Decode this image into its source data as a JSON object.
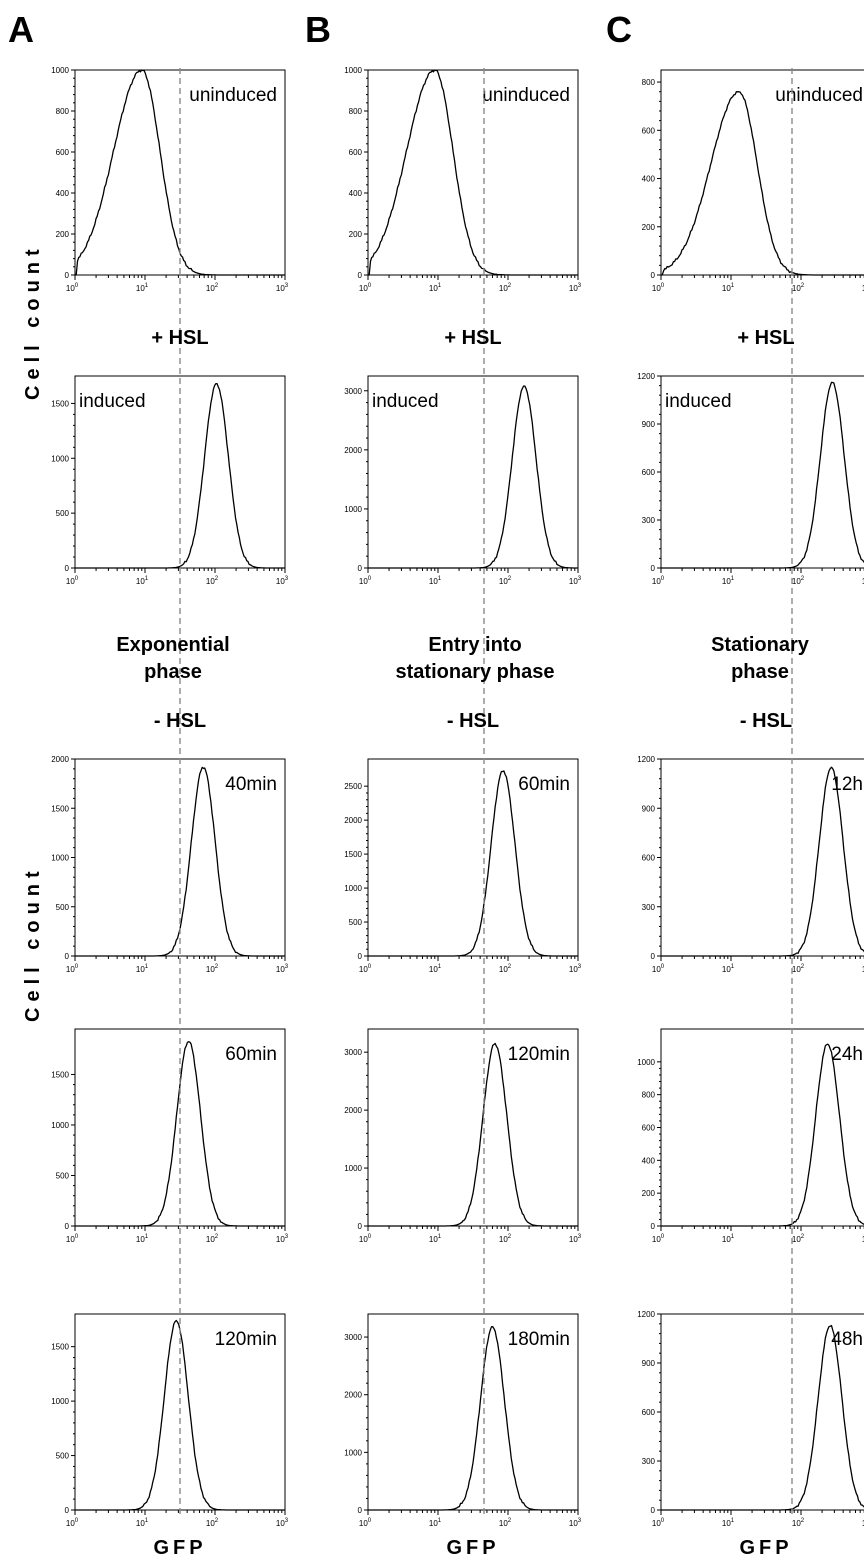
{
  "labels": {
    "column_letters": [
      "A",
      "B",
      "C"
    ],
    "ylabel": "Cell count",
    "xlabel": "GFP",
    "plus_hsl": "+ HSL",
    "minus_hsl": "- HSL",
    "phases": [
      [
        "Exponential",
        "phase"
      ],
      [
        "Entry into",
        "stationary phase"
      ],
      [
        "Stationary",
        "phase"
      ]
    ]
  },
  "colors": {
    "curve": "#000000",
    "reference_line": "#8a8a8a"
  },
  "chart_data": [
    {
      "type": "line",
      "column": "A",
      "row": 1,
      "label": "uninduced",
      "x_scale": "log",
      "xlim": [
        1,
        1000
      ],
      "ylim": [
        0,
        1000
      ],
      "yticks": [
        0,
        200,
        400,
        600,
        800,
        1000
      ],
      "peak": {
        "x": 9,
        "y": 1000
      }
    },
    {
      "type": "line",
      "column": "A",
      "row": 2,
      "label": "induced",
      "x_scale": "log",
      "xlim": [
        1,
        1000
      ],
      "ylim": [
        0,
        1750
      ],
      "yticks": [
        0,
        500,
        1000,
        1500
      ],
      "peak": {
        "x": 105,
        "y": 1680
      }
    },
    {
      "type": "line",
      "column": "A",
      "row": 3,
      "label": "40min",
      "x_scale": "log",
      "xlim": [
        1,
        1000
      ],
      "ylim": [
        0,
        2000
      ],
      "yticks": [
        0,
        500,
        1000,
        1500,
        2000
      ],
      "peak": {
        "x": 68,
        "y": 1920
      }
    },
    {
      "type": "line",
      "column": "A",
      "row": 4,
      "label": "60min",
      "x_scale": "log",
      "xlim": [
        1,
        1000
      ],
      "ylim": [
        0,
        1950
      ],
      "yticks": [
        0,
        500,
        1000,
        1500
      ],
      "peak": {
        "x": 42,
        "y": 1830
      }
    },
    {
      "type": "line",
      "column": "A",
      "row": 5,
      "label": "120min",
      "x_scale": "log",
      "xlim": [
        1,
        1000
      ],
      "ylim": [
        0,
        1800
      ],
      "yticks": [
        0,
        500,
        1000,
        1500
      ],
      "peak": {
        "x": 28,
        "y": 1740
      }
    },
    {
      "type": "line",
      "column": "B",
      "row": 1,
      "label": "uninduced",
      "x_scale": "log",
      "xlim": [
        1,
        1000
      ],
      "ylim": [
        0,
        1000
      ],
      "yticks": [
        0,
        200,
        400,
        600,
        800,
        1000
      ],
      "peak": {
        "x": 9,
        "y": 1000
      }
    },
    {
      "type": "line",
      "column": "B",
      "row": 2,
      "label": "induced",
      "x_scale": "log",
      "xlim": [
        1,
        1000
      ],
      "ylim": [
        0,
        3250
      ],
      "yticks": [
        0,
        1000,
        2000,
        3000
      ],
      "peak": {
        "x": 170,
        "y": 3080
      }
    },
    {
      "type": "line",
      "column": "B",
      "row": 3,
      "label": "60min",
      "x_scale": "log",
      "xlim": [
        1,
        1000
      ],
      "ylim": [
        0,
        2900
      ],
      "yticks": [
        0,
        500,
        1000,
        1500,
        2000,
        2500
      ],
      "peak": {
        "x": 85,
        "y": 2730
      }
    },
    {
      "type": "line",
      "column": "B",
      "row": 4,
      "label": "120min",
      "x_scale": "log",
      "xlim": [
        1,
        1000
      ],
      "ylim": [
        0,
        3400
      ],
      "yticks": [
        0,
        1000,
        2000,
        3000
      ],
      "peak": {
        "x": 65,
        "y": 3150
      }
    },
    {
      "type": "line",
      "column": "B",
      "row": 5,
      "label": "180min",
      "x_scale": "log",
      "xlim": [
        1,
        1000
      ],
      "ylim": [
        0,
        3400
      ],
      "yticks": [
        0,
        1000,
        2000,
        3000
      ],
      "peak": {
        "x": 60,
        "y": 3180
      }
    },
    {
      "type": "line",
      "column": "C",
      "row": 1,
      "label": "uninduced",
      "x_scale": "log",
      "xlim": [
        1,
        1000
      ],
      "ylim": [
        0,
        850
      ],
      "yticks": [
        0,
        200,
        400,
        600,
        800
      ],
      "peak": {
        "x": 13,
        "y": 760
      }
    },
    {
      "type": "line",
      "column": "C",
      "row": 2,
      "label": "induced",
      "x_scale": "log",
      "xlim": [
        1,
        1000
      ],
      "ylim": [
        0,
        1200
      ],
      "yticks": [
        0,
        300,
        600,
        900,
        1200
      ],
      "peak": {
        "x": 280,
        "y": 1160
      }
    },
    {
      "type": "line",
      "column": "C",
      "row": 3,
      "label": "12h",
      "x_scale": "log",
      "xlim": [
        1,
        1000
      ],
      "ylim": [
        0,
        1200
      ],
      "yticks": [
        0,
        300,
        600,
        900,
        1200
      ],
      "peak": {
        "x": 270,
        "y": 1150
      }
    },
    {
      "type": "line",
      "column": "C",
      "row": 4,
      "label": "24h",
      "x_scale": "log",
      "xlim": [
        1,
        1000
      ],
      "ylim": [
        0,
        1200
      ],
      "yticks": [
        0,
        200,
        400,
        600,
        800,
        1000
      ],
      "peak": {
        "x": 240,
        "y": 1110
      }
    },
    {
      "type": "line",
      "column": "C",
      "row": 5,
      "label": "48h",
      "x_scale": "log",
      "xlim": [
        1,
        1000
      ],
      "ylim": [
        0,
        1200
      ],
      "yticks": [
        0,
        300,
        600,
        900,
        1200
      ],
      "peak": {
        "x": 260,
        "y": 1130
      }
    }
  ]
}
